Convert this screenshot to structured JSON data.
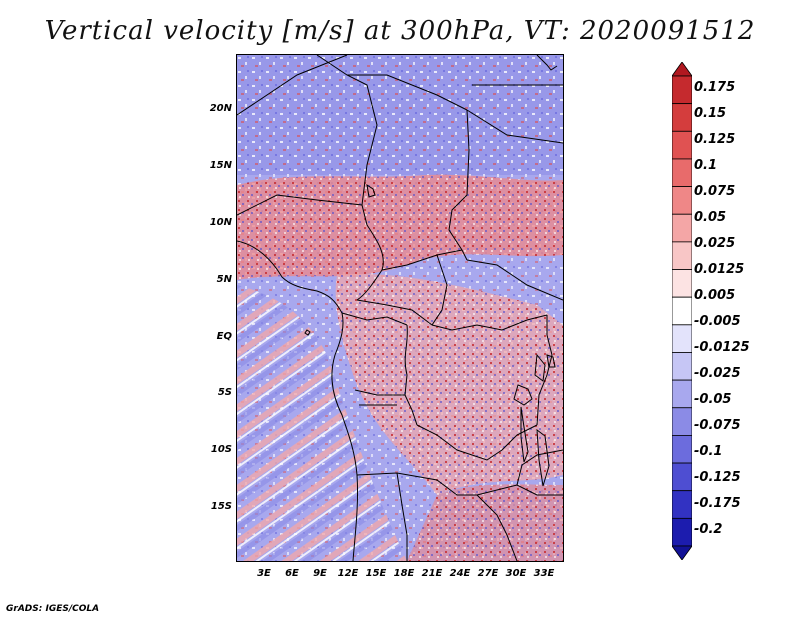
{
  "title": "Vertical velocity [m/s] at 300hPa, VT: 2020091512",
  "credit": "GrADS: IGES/COLA",
  "map": {
    "lat_labels": [
      "20N",
      "15N",
      "10N",
      "5N",
      "EQ",
      "5S",
      "10S",
      "15S"
    ],
    "lon_labels": [
      "3E",
      "6E",
      "9E",
      "12E",
      "15E",
      "18E",
      "21E",
      "24E",
      "27E",
      "30E",
      "33E"
    ]
  },
  "colorbar": {
    "labels": [
      "0.175",
      "0.15",
      "0.125",
      "0.1",
      "0.075",
      "0.05",
      "0.025",
      "0.0125",
      "0.005",
      "-0.005",
      "-0.0125",
      "-0.025",
      "-0.05",
      "-0.075",
      "-0.1",
      "-0.125",
      "-0.175",
      "-0.2"
    ],
    "colors": [
      "#b01820",
      "#c52a2e",
      "#d43d3d",
      "#e05252",
      "#e86b6b",
      "#ef8787",
      "#f4a6a6",
      "#f8c6c6",
      "#fce3e3",
      "#ffffff",
      "#e3e3fb",
      "#c6c6f5",
      "#a8a8ee",
      "#8b8be6",
      "#6c6cdd",
      "#4e4ed2",
      "#3232c2",
      "#1c1cae",
      "#121296"
    ]
  }
}
